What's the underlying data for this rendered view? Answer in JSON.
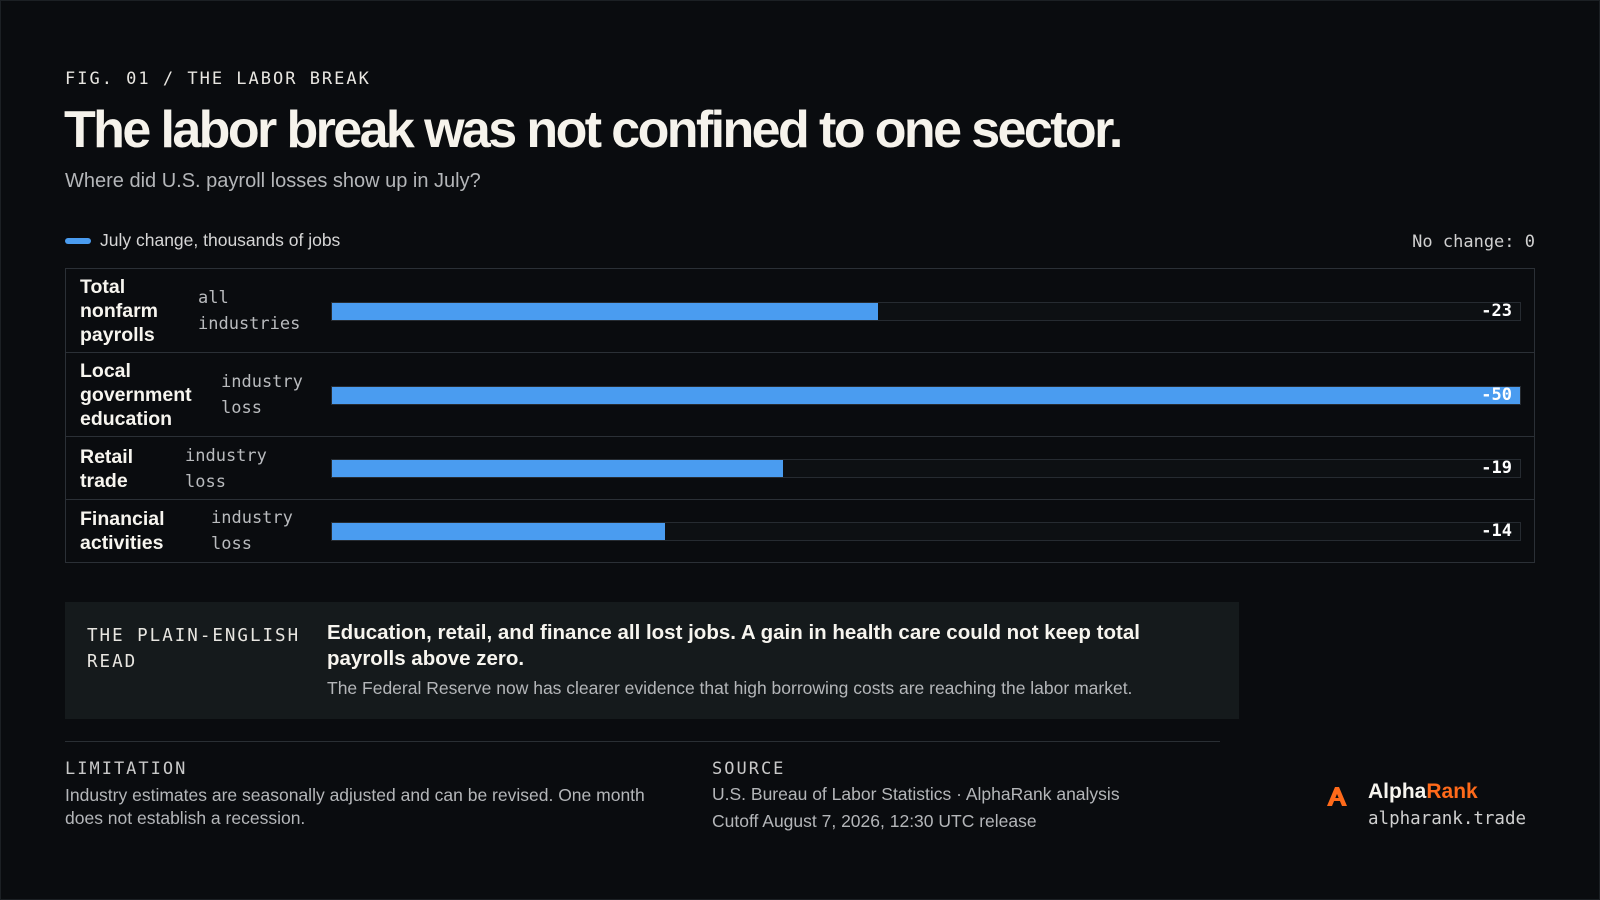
{
  "fig_label": "FIG. 01 / THE LABOR BREAK",
  "title": "The labor break was not confined to one sector.",
  "subtitle": "Where did U.S. payroll losses show up in July?",
  "legend_label": "July change, thousands of jobs",
  "zero_note": "No change: 0",
  "colors": {
    "bar": "#4a9cf0",
    "accent": "#ff6a1a",
    "background": "#0a0c0f"
  },
  "chart_data": {
    "type": "bar",
    "orientation": "horizontal",
    "title": "The labor break was not confined to one sector.",
    "subtitle": "Where did U.S. payroll losses show up in July?",
    "xlabel": "",
    "ylabel": "",
    "categories": [
      "Total nonfarm payrolls",
      "Local government education",
      "Retail trade",
      "Financial activities"
    ],
    "notes": [
      "all industries",
      "industry loss",
      "industry loss",
      "industry loss"
    ],
    "series": [
      {
        "name": "July change, thousands of jobs",
        "values": [
          -23,
          -50,
          -19,
          -14
        ]
      }
    ],
    "value_labels": [
      "-23",
      "-50",
      "-19",
      "-14"
    ],
    "xlim": [
      -50,
      0
    ],
    "grid": false,
    "legend_position": "top-left"
  },
  "read": {
    "kicker": "THE PLAIN-ENGLISH READ",
    "headline": "Education, retail, and finance all lost jobs. A gain in health care could not keep total payrolls above zero.",
    "body": "The Federal Reserve now has clearer evidence that high borrowing costs are reaching the labor market."
  },
  "limitation": {
    "kicker": "LIMITATION",
    "text": "Industry estimates are seasonally adjusted and can be revised. One month does not establish a recession."
  },
  "source": {
    "kicker": "SOURCE",
    "line1": "U.S. Bureau of Labor Statistics · AlphaRank analysis",
    "line2": "Cutoff August 7, 2026, 12:30 UTC release"
  },
  "brand": {
    "name_part1": "Alpha",
    "name_part2": "Rank",
    "url": "alpharank.trade",
    "logo_icon": "alpharank-logo-icon"
  }
}
